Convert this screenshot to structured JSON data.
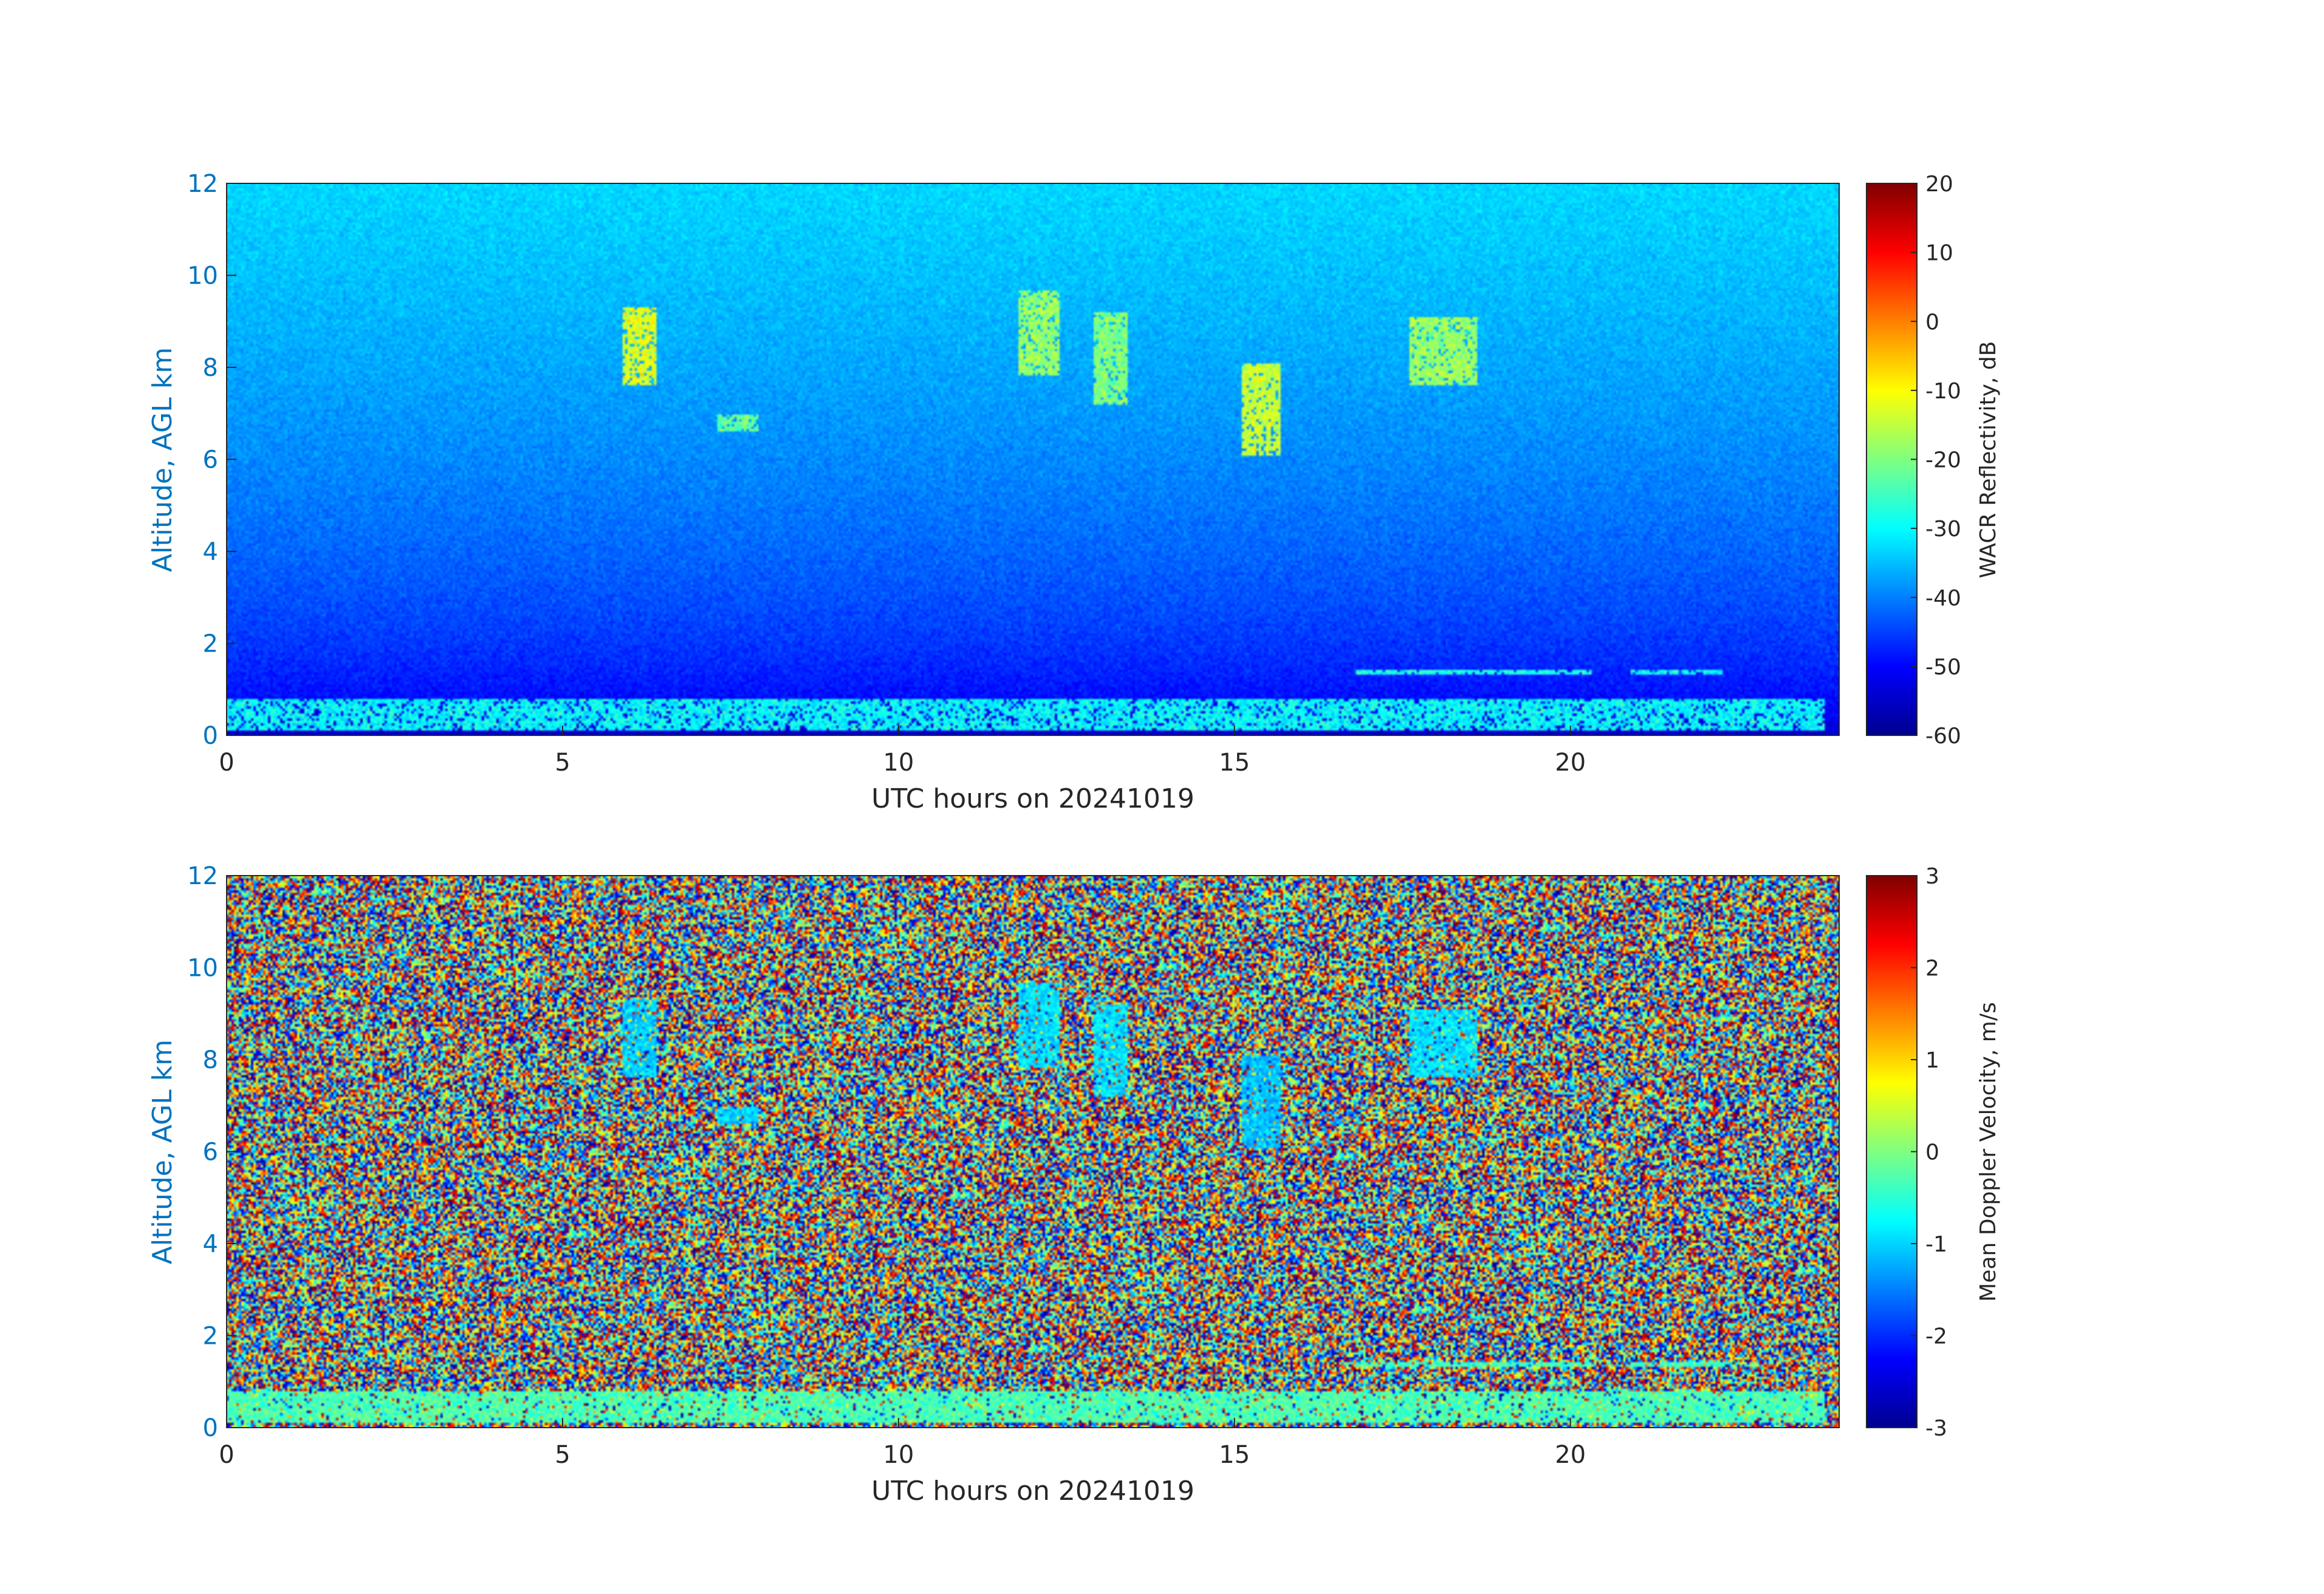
{
  "chart_data": [
    {
      "type": "heatmap",
      "xlabel": "UTC hours on 20241019",
      "ylabel": "Altitude, AGL km",
      "xlim": [
        0,
        24
      ],
      "ylim": [
        0,
        12
      ],
      "x_ticks": [
        0,
        5,
        10,
        15,
        20
      ],
      "y_ticks": [
        0,
        2,
        4,
        6,
        8,
        10,
        12
      ],
      "colorbar": {
        "label": "WACR Reflectivity, dB",
        "range": [
          -60,
          20
        ],
        "ticks": [
          20,
          10,
          0,
          -10,
          -20,
          -30,
          -40,
          -50,
          -60
        ],
        "colormap": "jet"
      },
      "background": "noise: approx -55 dB near surface rising to approx -33 dB at 12 km",
      "features": [
        {
          "name": "boundary layer cloud",
          "x": [
            0,
            23.8
          ],
          "y": [
            0.1,
            0.8
          ],
          "value": -30
        },
        {
          "name": "cirrus",
          "x": [
            5.9,
            6.4
          ],
          "y": [
            7.6,
            9.3
          ],
          "value": -12
        },
        {
          "name": "cirrus",
          "x": [
            7.3,
            7.9
          ],
          "y": [
            6.6,
            7.0
          ],
          "value": -22
        },
        {
          "name": "cirrus",
          "x": [
            11.8,
            12.4
          ],
          "y": [
            7.8,
            9.7
          ],
          "value": -18
        },
        {
          "name": "cirrus",
          "x": [
            12.9,
            13.4
          ],
          "y": [
            7.2,
            9.2
          ],
          "value": -20
        },
        {
          "name": "cirrus",
          "x": [
            15.1,
            15.7
          ],
          "y": [
            6.1,
            8.1
          ],
          "value": -14
        },
        {
          "name": "cirrus",
          "x": [
            17.6,
            18.6
          ],
          "y": [
            7.6,
            9.1
          ],
          "value": -18
        },
        {
          "name": "low stratus layer",
          "x": [
            16.8,
            20.3
          ],
          "y": [
            1.3,
            1.45
          ],
          "value": -28
        },
        {
          "name": "low stratus layer",
          "x": [
            20.9,
            22.3
          ],
          "y": [
            1.3,
            1.45
          ],
          "value": -30
        }
      ]
    },
    {
      "type": "heatmap",
      "xlabel": "UTC hours on 20241019",
      "ylabel": "Altitude, AGL km",
      "xlim": [
        0,
        24
      ],
      "ylim": [
        0,
        12
      ],
      "x_ticks": [
        0,
        5,
        10,
        15,
        20
      ],
      "y_ticks": [
        0,
        2,
        4,
        6,
        8,
        10,
        12
      ],
      "colorbar": {
        "label": "Mean Doppler Velocity, m/s",
        "range": [
          -3,
          3
        ],
        "ticks": [
          3,
          2,
          1,
          0,
          -1,
          -2,
          -3
        ],
        "colormap": "jet"
      },
      "background": "random noise spanning -3 to 3 m/s",
      "features": [
        {
          "name": "boundary layer cloud",
          "x": [
            0,
            23.8
          ],
          "y": [
            0.1,
            0.8
          ],
          "value": -0.3
        },
        {
          "name": "cirrus",
          "x": [
            5.9,
            6.4
          ],
          "y": [
            7.6,
            9.3
          ],
          "value": -1.0
        },
        {
          "name": "cirrus",
          "x": [
            7.3,
            7.9
          ],
          "y": [
            6.6,
            7.0
          ],
          "value": -1.0
        },
        {
          "name": "cirrus",
          "x": [
            11.8,
            12.4
          ],
          "y": [
            7.8,
            9.7
          ],
          "value": -0.9
        },
        {
          "name": "cirrus",
          "x": [
            12.9,
            13.4
          ],
          "y": [
            7.2,
            9.2
          ],
          "value": -0.9
        },
        {
          "name": "cirrus",
          "x": [
            15.1,
            15.7
          ],
          "y": [
            6.1,
            8.1
          ],
          "value": -1.1
        },
        {
          "name": "cirrus",
          "x": [
            17.6,
            18.6
          ],
          "y": [
            7.6,
            9.1
          ],
          "value": -0.9
        },
        {
          "name": "low stratus layer",
          "x": [
            16.8,
            20.3
          ],
          "y": [
            1.3,
            1.45
          ],
          "value": -0.4
        },
        {
          "name": "low stratus layer",
          "x": [
            20.9,
            22.3
          ],
          "y": [
            1.3,
            1.45
          ],
          "value": -0.4
        }
      ]
    }
  ],
  "colors": {
    "axis_label": "#0072BD",
    "tick_text": "#262626",
    "axis_line": "#262626"
  }
}
